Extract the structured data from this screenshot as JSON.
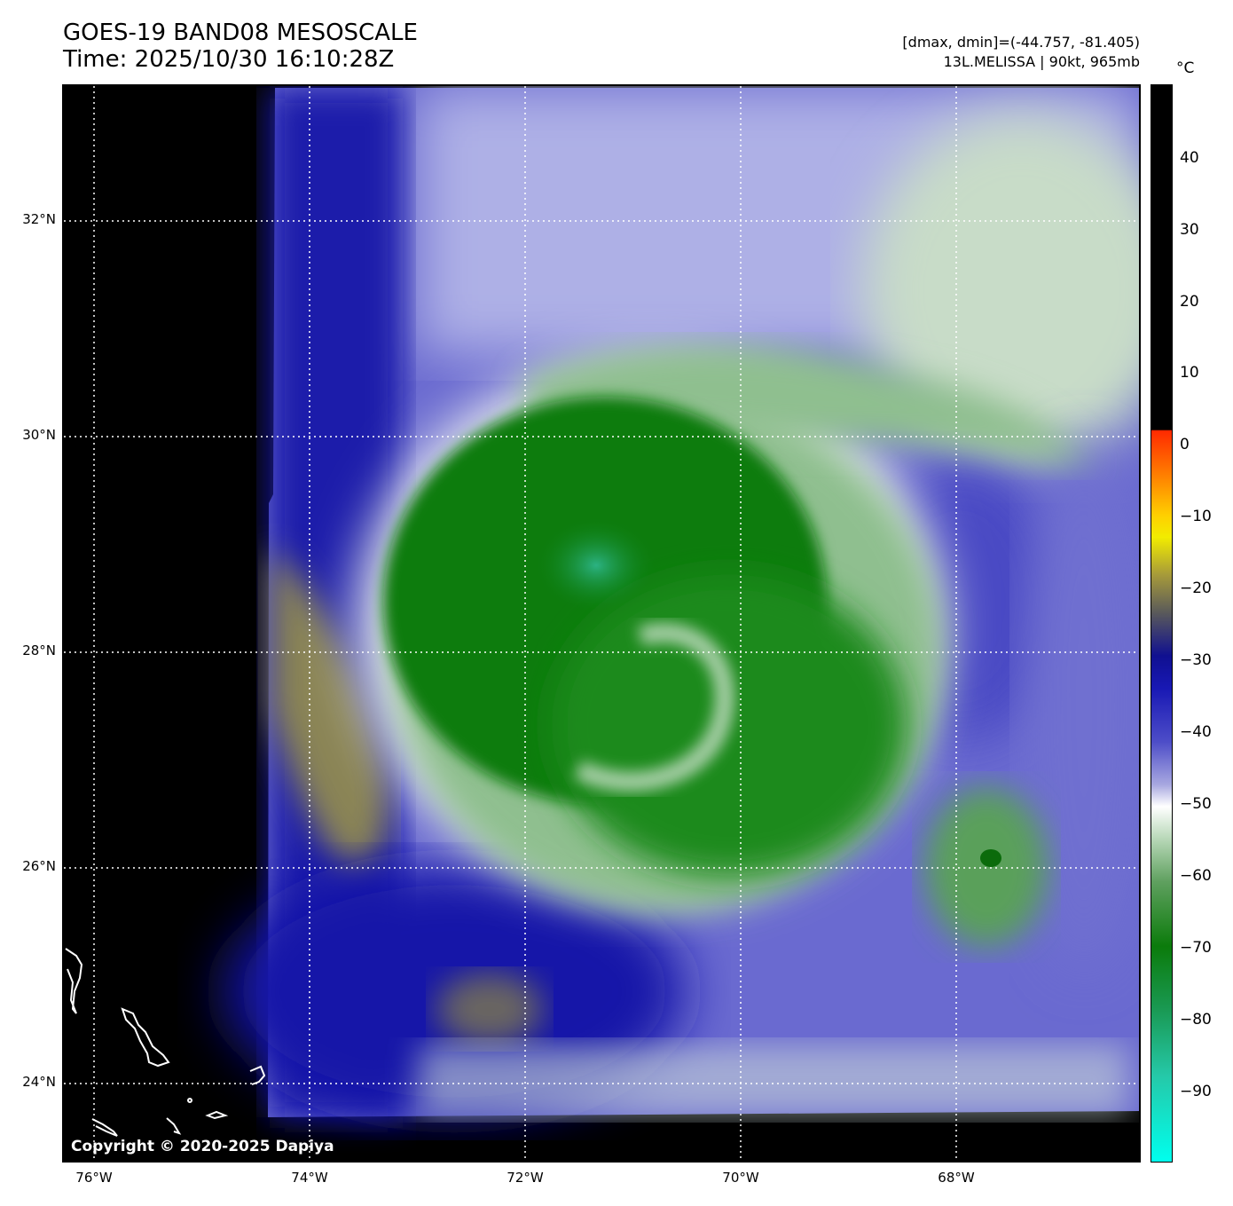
{
  "header": {
    "title_line1": "GOES-19 BAND08 MESOSCALE",
    "title_line2": "Time: 2025/10/30 16:10:28Z",
    "info_line1": "[dmax, dmin]=(-44.757, -81.405)",
    "info_line2": "13L.MELISSA | 90kt, 965mb"
  },
  "map": {
    "copyright": "Copyright © 2020-2025 Dapiya",
    "lat_labels": [
      "32°N",
      "30°N",
      "28°N",
      "26°N",
      "24°N"
    ],
    "lon_labels": [
      "76°W",
      "74°W",
      "72°W",
      "70°W",
      "68°W"
    ]
  },
  "colorbar": {
    "unit": "°C",
    "labels": [
      "40",
      "30",
      "20",
      "10",
      "0",
      "−10",
      "−20",
      "−30",
      "−40",
      "−50",
      "−60",
      "−70",
      "−80",
      "−90"
    ],
    "colors": {
      "warm": "#000000",
      "red": "#ff2a00",
      "yellow": "#f2ec00",
      "blue": "#1818b4",
      "white": "#ffffff",
      "green": "#0b7b0b",
      "cyan": "#00ffee"
    }
  }
}
